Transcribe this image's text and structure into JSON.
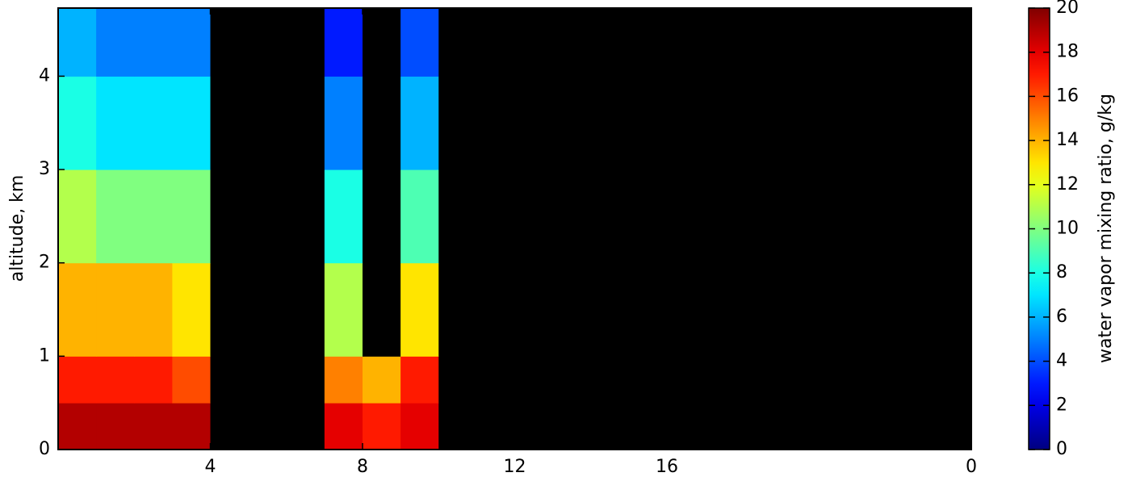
{
  "chart_data": {
    "type": "heatmap",
    "ylabel": "altitude, km",
    "xlim": [
      0,
      24
    ],
    "xticks": [
      4,
      8,
      12,
      16,
      {
        "value": 24,
        "label": "0"
      }
    ],
    "ylim": [
      0,
      4.73
    ],
    "yticks": [
      0,
      1,
      2,
      3,
      4
    ],
    "x_bins": [
      0,
      1,
      2,
      3,
      4,
      5,
      6,
      7,
      8,
      9,
      10,
      11,
      12,
      13,
      14,
      15,
      16,
      17,
      18,
      19,
      20,
      21,
      22,
      23,
      24
    ],
    "y_bins": [
      0,
      0.5,
      1,
      2,
      3,
      4,
      4.73
    ],
    "z": [
      [
        19,
        19,
        19,
        19,
        null,
        null,
        null,
        18,
        17,
        18,
        null,
        null,
        null,
        null,
        null,
        null,
        null,
        null,
        null,
        null,
        null,
        null,
        null,
        null
      ],
      [
        17,
        17,
        17,
        16,
        null,
        null,
        null,
        15,
        14,
        17,
        null,
        null,
        null,
        null,
        null,
        null,
        null,
        null,
        null,
        null,
        null,
        null,
        null,
        null
      ],
      [
        14,
        14,
        14,
        13,
        null,
        null,
        null,
        11,
        null,
        13,
        null,
        null,
        null,
        null,
        null,
        null,
        null,
        null,
        null,
        null,
        null,
        null,
        null,
        null
      ],
      [
        11,
        10,
        10,
        10,
        null,
        null,
        null,
        8,
        null,
        9,
        null,
        null,
        null,
        null,
        null,
        null,
        null,
        null,
        null,
        null,
        null,
        null,
        null,
        null
      ],
      [
        8,
        7,
        7,
        7,
        null,
        null,
        null,
        5,
        null,
        6,
        null,
        null,
        null,
        null,
        null,
        null,
        null,
        null,
        null,
        null,
        null,
        null,
        null,
        null
      ],
      [
        6,
        5,
        5,
        5,
        null,
        null,
        null,
        3,
        null,
        4,
        null,
        null,
        null,
        null,
        null,
        null,
        null,
        null,
        null,
        null,
        null,
        null,
        null,
        null
      ]
    ],
    "colormap": "jet",
    "colorbar": {
      "label": "water vapor mixing ratio, g/kg",
      "lim": [
        0,
        20
      ],
      "ticks": [
        0,
        2,
        4,
        6,
        8,
        10,
        12,
        14,
        16,
        18,
        20
      ]
    }
  }
}
